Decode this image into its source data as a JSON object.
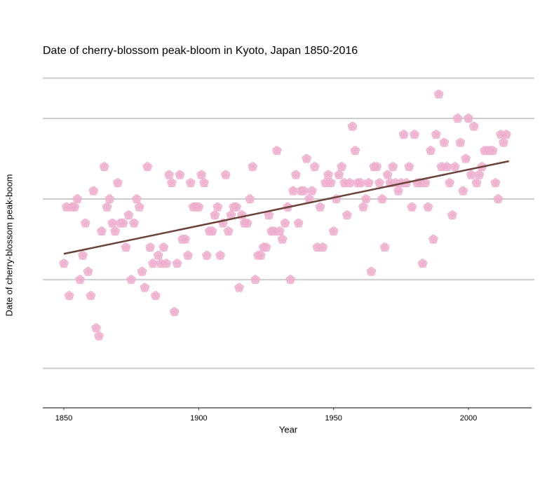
{
  "chart_data": {
    "type": "scatter",
    "title": "Date of cherry-blossom peak-bloom in Kyoto, Japan 1850-2016",
    "x_label": "Year",
    "y_label": "Date of cherry-blossom peak-boom",
    "x": [
      1850,
      1851,
      1852,
      1853,
      1854,
      1855,
      1856,
      1857,
      1858,
      1859,
      1860,
      1861,
      1862,
      1863,
      1864,
      1865,
      1866,
      1867,
      1868,
      1869,
      1870,
      1871,
      1872,
      1873,
      1874,
      1875,
      1876,
      1877,
      1878,
      1879,
      1880,
      1881,
      1882,
      1883,
      1884,
      1885,
      1886,
      1887,
      1888,
      1889,
      1890,
      1891,
      1892,
      1893,
      1894,
      1895,
      1896,
      1897,
      1898,
      1899,
      1900,
      1901,
      1902,
      1903,
      1904,
      1905,
      1906,
      1907,
      1908,
      1909,
      1910,
      1911,
      1912,
      1913,
      1914,
      1915,
      1916,
      1917,
      1918,
      1919,
      1920,
      1921,
      1922,
      1923,
      1924,
      1925,
      1926,
      1927,
      1928,
      1929,
      1930,
      1931,
      1932,
      1933,
      1934,
      1935,
      1936,
      1937,
      1938,
      1939,
      1940,
      1941,
      1942,
      1943,
      1944,
      1945,
      1946,
      1947,
      1948,
      1949,
      1950,
      1951,
      1952,
      1953,
      1954,
      1955,
      1956,
      1957,
      1958,
      1959,
      1960,
      1961,
      1962,
      1963,
      1964,
      1965,
      1966,
      1967,
      1968,
      1969,
      1970,
      1971,
      1972,
      1973,
      1974,
      1975,
      1976,
      1977,
      1978,
      1979,
      1980,
      1981,
      1982,
      1983,
      1984,
      1985,
      1986,
      1987,
      1988,
      1989,
      1990,
      1991,
      1992,
      1993,
      1994,
      1995,
      1996,
      1997,
      1998,
      1999,
      2000,
      2001,
      2002,
      2003,
      2004,
      2005,
      2006,
      2007,
      2008,
      2009,
      2010,
      2011,
      2012,
      2013,
      2014
    ],
    "values": [
      97,
      104,
      93,
      104,
      104,
      105,
      95,
      98,
      102,
      96,
      93,
      106,
      89,
      88,
      101,
      109,
      104,
      105,
      102,
      101,
      107,
      102,
      102,
      99,
      103,
      95,
      102,
      105,
      104,
      96,
      94,
      109,
      99,
      97,
      93,
      98,
      97,
      99,
      97,
      108,
      107,
      91,
      97,
      108,
      100,
      100,
      98,
      107,
      104,
      104,
      104,
      108,
      107,
      98,
      101,
      101,
      103,
      104,
      98,
      102,
      108,
      101,
      103,
      104,
      104,
      94,
      103,
      102,
      102,
      105,
      109,
      95,
      98,
      98,
      99,
      99,
      103,
      101,
      101,
      111,
      101,
      100,
      102,
      104,
      95,
      106,
      108,
      102,
      106,
      106,
      110,
      105,
      106,
      109,
      99,
      104,
      99,
      107,
      108,
      107,
      101,
      105,
      108,
      109,
      107,
      103,
      107,
      114,
      111,
      107,
      107,
      104,
      105,
      107,
      96,
      109,
      109,
      107,
      105,
      99,
      108,
      107,
      109,
      107,
      106,
      107,
      113,
      107,
      109,
      104,
      113,
      107,
      107,
      97,
      107,
      104,
      111,
      100,
      113,
      118,
      109,
      112,
      109,
      107,
      103,
      109,
      115,
      112,
      106,
      110,
      115,
      108,
      114,
      107,
      108,
      109,
      111,
      111,
      111,
      111,
      107,
      105,
      113,
      112,
      113
    ],
    "color": "#f2b6d4",
    "trend": {
      "x": [
        1850,
        2015
      ],
      "values": [
        98.2,
        109.7
      ],
      "color": "#6b4336"
    },
    "xlim": [
      1842.2,
      2023.4
    ],
    "xticks": [
      1850,
      1900,
      1950,
      2000
    ],
    "ylim": [
      79.1,
      121
    ],
    "yticks": [
      84,
      95,
      105,
      115,
      120
    ],
    "grid": true
  }
}
